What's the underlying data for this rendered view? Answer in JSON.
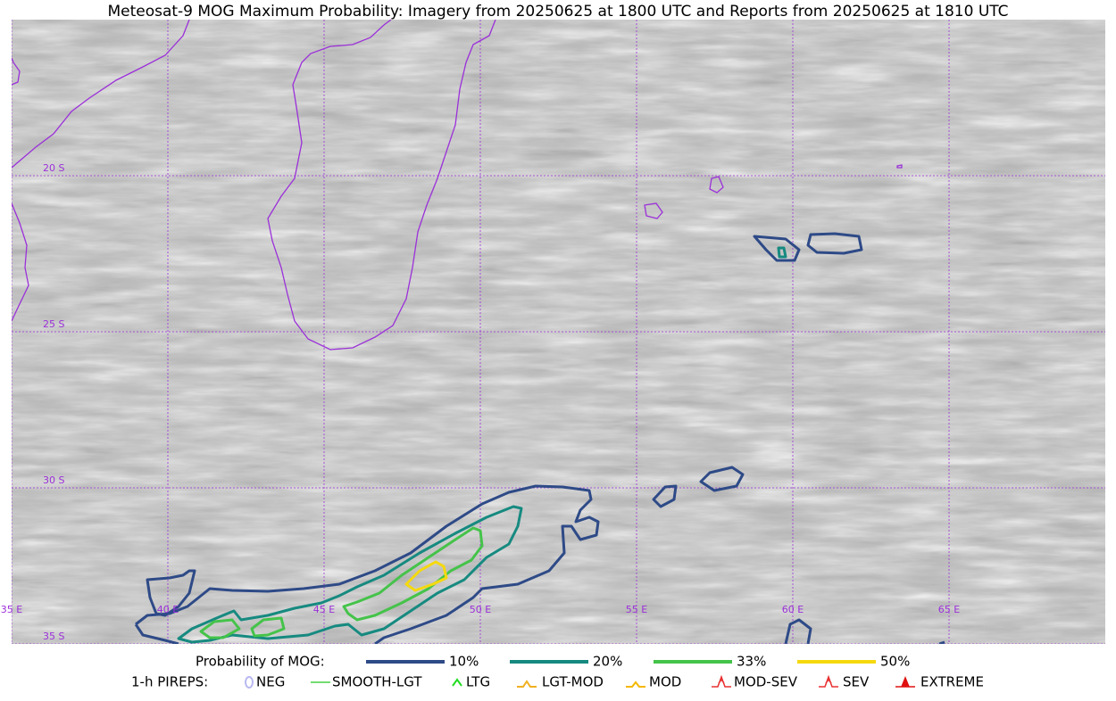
{
  "title": "Meteosat-9 MOG Maximum Probability: Imagery from 20250625 at 1800 UTC and Reports from 20250625 at 1810 UTC",
  "map": {
    "lat_labels": [
      "20 S",
      "25 S",
      "30 S",
      "35 S"
    ],
    "lon_labels": [
      "35 E",
      "40 E",
      "45 E",
      "50 E",
      "55 E",
      "60 E",
      "65 E"
    ]
  },
  "legend": {
    "probability": {
      "label": "Probability of MOG:",
      "levels": [
        {
          "label": "10%",
          "color": "#2e4a87"
        },
        {
          "label": "20%",
          "color": "#168a80"
        },
        {
          "label": "33%",
          "color": "#45c34a"
        },
        {
          "label": "50%",
          "color": "#f5d90f"
        }
      ]
    },
    "pireps": {
      "label": "1-h PIREPS:",
      "items": [
        {
          "label": "NEG",
          "color": "#b8b8f0"
        },
        {
          "label": "SMOOTH-LGT",
          "color": "#45d045"
        },
        {
          "label": "LTG",
          "color": "#22dd22"
        },
        {
          "label": "LGT-MOD",
          "color": "#f0b020"
        },
        {
          "label": "MOD",
          "color": "#f5b800"
        },
        {
          "label": "MOD-SEV",
          "color": "#e83030"
        },
        {
          "label": "SEV",
          "color": "#e83030"
        },
        {
          "label": "EXTREME",
          "color": "#e01010"
        }
      ]
    }
  }
}
